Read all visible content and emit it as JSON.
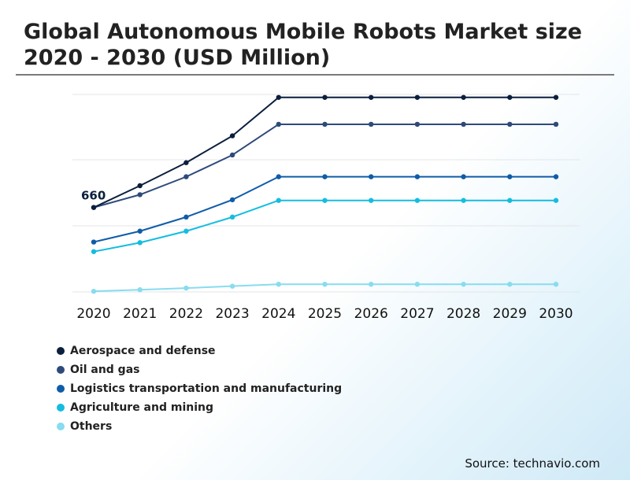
{
  "title": "Global Autonomous Mobile Robots Market size 2020 - 2030 (USD Million)",
  "source": "Source: technavio.com",
  "chart_data": {
    "type": "line",
    "title": "Global Autonomous Mobile Robots Market size 2020 - 2030 (USD Million)",
    "x": [
      "2020",
      "2021",
      "2022",
      "2023",
      "2024",
      "2025",
      "2026",
      "2027",
      "2028",
      "2029",
      "2030"
    ],
    "ylim": [
      0,
      1820
    ],
    "grid": true,
    "legend_position": "bottom-left",
    "annotations": [
      {
        "series": 0,
        "index": 0,
        "text": "660"
      }
    ],
    "series": [
      {
        "name": "Aerospace and defense",
        "color": "#0b1f3d",
        "values": [
          660,
          830,
          1010,
          1220,
          1520,
          1520,
          1520,
          1520,
          1520,
          1520,
          1520
        ]
      },
      {
        "name": "Oil and gas",
        "color": "#2e4a7a",
        "values": [
          660,
          760,
          900,
          1070,
          1310,
          1310,
          1310,
          1310,
          1310,
          1310,
          1310
        ]
      },
      {
        "name": "Logistics transportation and manufacturing",
        "color": "#0f5ca8",
        "values": [
          390,
          475,
          585,
          720,
          900,
          900,
          900,
          900,
          900,
          900,
          900
        ]
      },
      {
        "name": "Agriculture and mining",
        "color": "#13bde0",
        "values": [
          315,
          385,
          475,
          585,
          715,
          715,
          715,
          715,
          715,
          715,
          715
        ]
      },
      {
        "name": "Others",
        "color": "#88dcef",
        "values": [
          5,
          17,
          30,
          45,
          60,
          60,
          60,
          60,
          60,
          60,
          60
        ]
      }
    ]
  }
}
